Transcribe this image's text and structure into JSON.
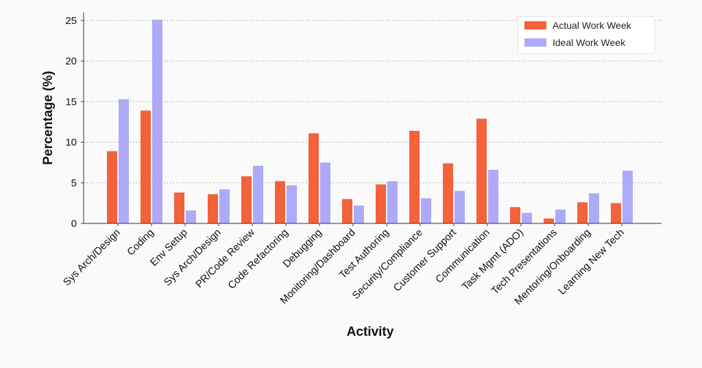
{
  "chart_data": {
    "type": "bar",
    "title": "",
    "xlabel": "Activity",
    "ylabel": "Percentage (%)",
    "ylim": [
      0,
      26
    ],
    "yticks": [
      0,
      5,
      10,
      15,
      20,
      25
    ],
    "grid": "y-dotted",
    "legend_position": "top-right",
    "categories": [
      "Sys Arch/Design",
      "Coding",
      "Env Setup",
      "Sys Arch/Design",
      "PR/Code Review",
      "Code Refactoring",
      "Debugging",
      "Monitoring/Dashboard",
      "Test Authoring",
      "Security/Compliance",
      "Customer Support",
      "Communication",
      "Task Mgmt (ADO)",
      "Tech Presentations",
      "Mentoring/Onboarding",
      "Learning New Tech"
    ],
    "series": [
      {
        "name": "Actual Work Week",
        "color": "#f4623a",
        "values": [
          8.9,
          13.9,
          3.8,
          3.6,
          5.8,
          5.2,
          11.1,
          3.0,
          4.8,
          11.4,
          7.4,
          12.9,
          2.0,
          0.6,
          2.6,
          2.5
        ]
      },
      {
        "name": "Ideal Work Week",
        "color": "#aeaaf7",
        "values": [
          15.3,
          25.1,
          1.6,
          4.2,
          7.1,
          4.7,
          7.5,
          2.2,
          5.2,
          3.1,
          4.0,
          6.6,
          1.3,
          1.7,
          3.7,
          6.5
        ]
      }
    ]
  }
}
